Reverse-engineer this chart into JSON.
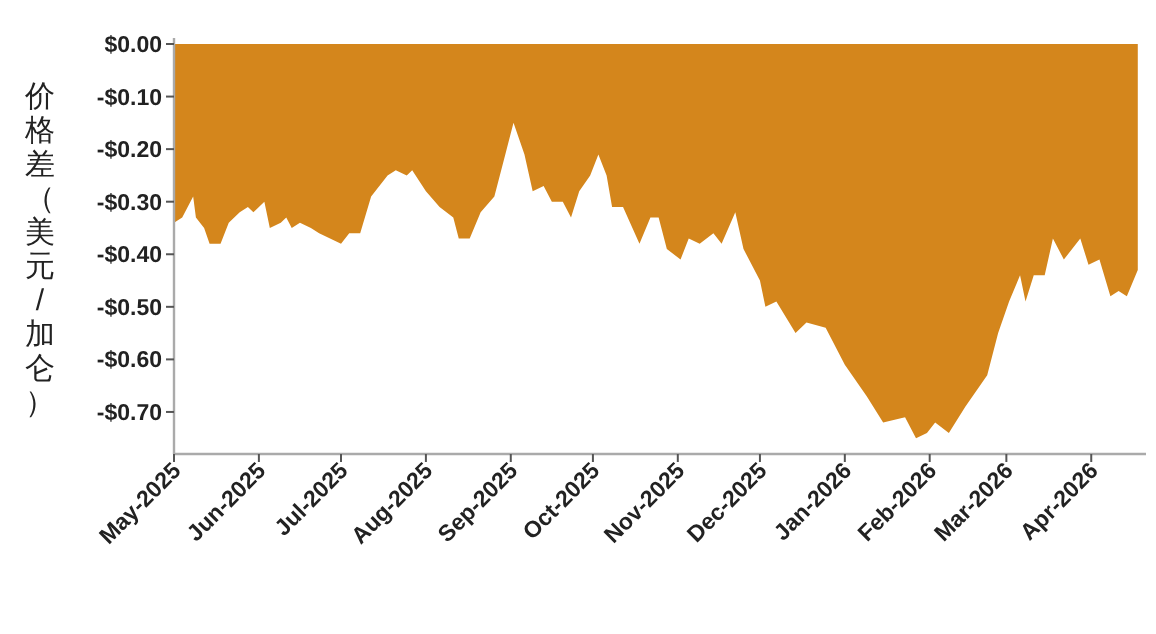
{
  "chart_data": {
    "type": "area",
    "ylabel": "价格差（美元/加仑）",
    "color": "#d4861c",
    "x": [
      "2025-05-01",
      "2025-05-04",
      "2025-05-08",
      "2025-05-09",
      "2025-05-12",
      "2025-05-14",
      "2025-05-18",
      "2025-05-21",
      "2025-05-25",
      "2025-05-28",
      "2025-05-30",
      "2025-06-03",
      "2025-06-05",
      "2025-06-09",
      "2025-06-11",
      "2025-06-13",
      "2025-06-16",
      "2025-06-20",
      "2025-06-23",
      "2025-06-27",
      "2025-07-01",
      "2025-07-04",
      "2025-07-08",
      "2025-07-12",
      "2025-07-18",
      "2025-07-21",
      "2025-07-25",
      "2025-07-27",
      "2025-08-01",
      "2025-08-06",
      "2025-08-11",
      "2025-08-13",
      "2025-08-17",
      "2025-08-21",
      "2025-08-26",
      "2025-08-30",
      "2025-09-02",
      "2025-09-06",
      "2025-09-09",
      "2025-09-13",
      "2025-09-16",
      "2025-09-20",
      "2025-09-23",
      "2025-09-26",
      "2025-09-30",
      "2025-10-03",
      "2025-10-06",
      "2025-10-08",
      "2025-10-12",
      "2025-10-18",
      "2025-10-22",
      "2025-10-25",
      "2025-10-28",
      "2025-11-02",
      "2025-11-05",
      "2025-11-09",
      "2025-11-14",
      "2025-11-17",
      "2025-11-22",
      "2025-11-25",
      "2025-12-01",
      "2025-12-03",
      "2025-12-07",
      "2025-12-14",
      "2025-12-18",
      "2025-12-25",
      "2026-01-01",
      "2026-01-09",
      "2026-01-15",
      "2026-01-23",
      "2026-01-27",
      "2026-01-31",
      "2026-02-03",
      "2026-02-08",
      "2026-02-14",
      "2026-02-22",
      "2026-02-26",
      "2026-03-02",
      "2026-03-06",
      "2026-03-08",
      "2026-03-11",
      "2026-03-15",
      "2026-03-18",
      "2026-03-22",
      "2026-03-28",
      "2026-03-31",
      "2026-04-04",
      "2026-04-08",
      "2026-04-11",
      "2026-04-14",
      "2026-04-18"
    ],
    "values": [
      -0.34,
      -0.33,
      -0.29,
      -0.33,
      -0.35,
      -0.38,
      -0.38,
      -0.34,
      -0.32,
      -0.31,
      -0.32,
      -0.3,
      -0.35,
      -0.34,
      -0.33,
      -0.35,
      -0.34,
      -0.35,
      -0.36,
      -0.37,
      -0.38,
      -0.36,
      -0.36,
      -0.29,
      -0.25,
      -0.24,
      -0.25,
      -0.24,
      -0.28,
      -0.31,
      -0.33,
      -0.37,
      -0.37,
      -0.32,
      -0.29,
      -0.21,
      -0.15,
      -0.21,
      -0.28,
      -0.27,
      -0.3,
      -0.3,
      -0.33,
      -0.28,
      -0.25,
      -0.21,
      -0.25,
      -0.31,
      -0.31,
      -0.38,
      -0.33,
      -0.33,
      -0.39,
      -0.41,
      -0.37,
      -0.38,
      -0.36,
      -0.38,
      -0.32,
      -0.39,
      -0.45,
      -0.5,
      -0.49,
      -0.55,
      -0.53,
      -0.54,
      -0.61,
      -0.67,
      -0.72,
      -0.71,
      -0.75,
      -0.74,
      -0.72,
      -0.74,
      -0.69,
      -0.63,
      -0.55,
      -0.49,
      -0.44,
      -0.49,
      -0.44,
      -0.44,
      -0.37,
      -0.41,
      -0.37,
      -0.42,
      -0.41,
      -0.48,
      -0.47,
      -0.48,
      -0.43
    ],
    "xlim": [
      "2025-05-01",
      "2026-04-21"
    ],
    "xticks": [
      {
        "value": "2025-05-01",
        "label": "May-2025"
      },
      {
        "value": "2025-06-01",
        "label": "Jun-2025"
      },
      {
        "value": "2025-07-01",
        "label": "Jul-2025"
      },
      {
        "value": "2025-08-01",
        "label": "Aug-2025"
      },
      {
        "value": "2025-09-01",
        "label": "Sep-2025"
      },
      {
        "value": "2025-10-01",
        "label": "Oct-2025"
      },
      {
        "value": "2025-11-01",
        "label": "Nov-2025"
      },
      {
        "value": "2025-12-01",
        "label": "Dec-2025"
      },
      {
        "value": "2026-01-01",
        "label": "Jan-2026"
      },
      {
        "value": "2026-02-01",
        "label": "Feb-2026"
      },
      {
        "value": "2026-03-01",
        "label": "Mar-2026"
      },
      {
        "value": "2026-04-01",
        "label": "Apr-2026"
      }
    ],
    "ylim": [
      -0.78,
      0
    ],
    "yticks": [
      {
        "value": 0,
        "label": "$0.00"
      },
      {
        "value": -0.1,
        "label": "-$0.10"
      },
      {
        "value": -0.2,
        "label": "-$0.20"
      },
      {
        "value": -0.3,
        "label": "-$0.30"
      },
      {
        "value": -0.4,
        "label": "-$0.40"
      },
      {
        "value": -0.5,
        "label": "-$0.50"
      },
      {
        "value": -0.6,
        "label": "-$0.60"
      },
      {
        "value": -0.7,
        "label": "-$0.70"
      }
    ]
  }
}
